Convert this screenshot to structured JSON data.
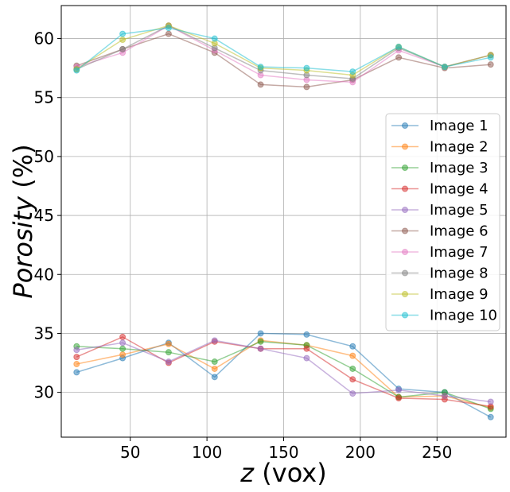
{
  "chart_data": {
    "type": "line",
    "xlabel_var": "z",
    "xlabel_unit": " (vox)",
    "ylabel_var": "Porosity",
    "ylabel_unit": " (%)",
    "xlim": [
      5,
      295
    ],
    "ylim": [
      26.2,
      62.8
    ],
    "xticks": [
      50,
      100,
      150,
      200,
      250
    ],
    "yticks": [
      30,
      35,
      40,
      45,
      50,
      55,
      60
    ],
    "grid": true,
    "legend_position": "center-right",
    "marker": "circle",
    "x": [
      15,
      45,
      75,
      105,
      135,
      165,
      195,
      225,
      255,
      285
    ],
    "series": [
      {
        "name": "Image 1",
        "color": "#1f77b4",
        "values": [
          31.7,
          32.9,
          34.2,
          31.3,
          35.0,
          34.9,
          33.9,
          30.3,
          30.0,
          27.9
        ]
      },
      {
        "name": "Image 2",
        "color": "#ff7f0e",
        "values": [
          32.4,
          33.2,
          34.1,
          32.0,
          34.4,
          34.0,
          33.1,
          29.6,
          29.7,
          28.7
        ]
      },
      {
        "name": "Image 3",
        "color": "#2ca02c",
        "values": [
          33.9,
          33.7,
          33.4,
          32.6,
          34.3,
          34.0,
          32.0,
          29.6,
          30.0,
          28.6
        ]
      },
      {
        "name": "Image 4",
        "color": "#d62728",
        "values": [
          33.0,
          34.7,
          32.5,
          34.3,
          33.7,
          33.7,
          31.1,
          29.5,
          29.4,
          28.8
        ]
      },
      {
        "name": "Image 5",
        "color": "#9467bd",
        "values": [
          33.6,
          34.2,
          32.6,
          34.4,
          33.7,
          32.9,
          29.9,
          30.2,
          29.7,
          29.2
        ]
      },
      {
        "name": "Image 6",
        "color": "#8c564b",
        "values": [
          57.7,
          59.1,
          60.4,
          58.8,
          56.1,
          55.9,
          56.5,
          58.4,
          57.5,
          57.8
        ]
      },
      {
        "name": "Image 7",
        "color": "#e377c2",
        "values": [
          57.6,
          58.8,
          61.1,
          59.0,
          56.9,
          56.5,
          56.3,
          59.0,
          57.6,
          58.6
        ]
      },
      {
        "name": "Image 8",
        "color": "#7f7f7f",
        "values": [
          57.4,
          59.1,
          61.1,
          59.2,
          57.3,
          56.9,
          56.6,
          59.2,
          57.6,
          58.6
        ]
      },
      {
        "name": "Image 9",
        "color": "#bcbd22",
        "values": [
          57.4,
          59.9,
          61.1,
          59.6,
          57.5,
          57.3,
          56.9,
          59.3,
          57.6,
          58.6
        ]
      },
      {
        "name": "Image 10",
        "color": "#17becf",
        "values": [
          57.3,
          60.4,
          60.9,
          60.0,
          57.6,
          57.5,
          57.2,
          59.3,
          57.6,
          58.4
        ]
      }
    ]
  }
}
